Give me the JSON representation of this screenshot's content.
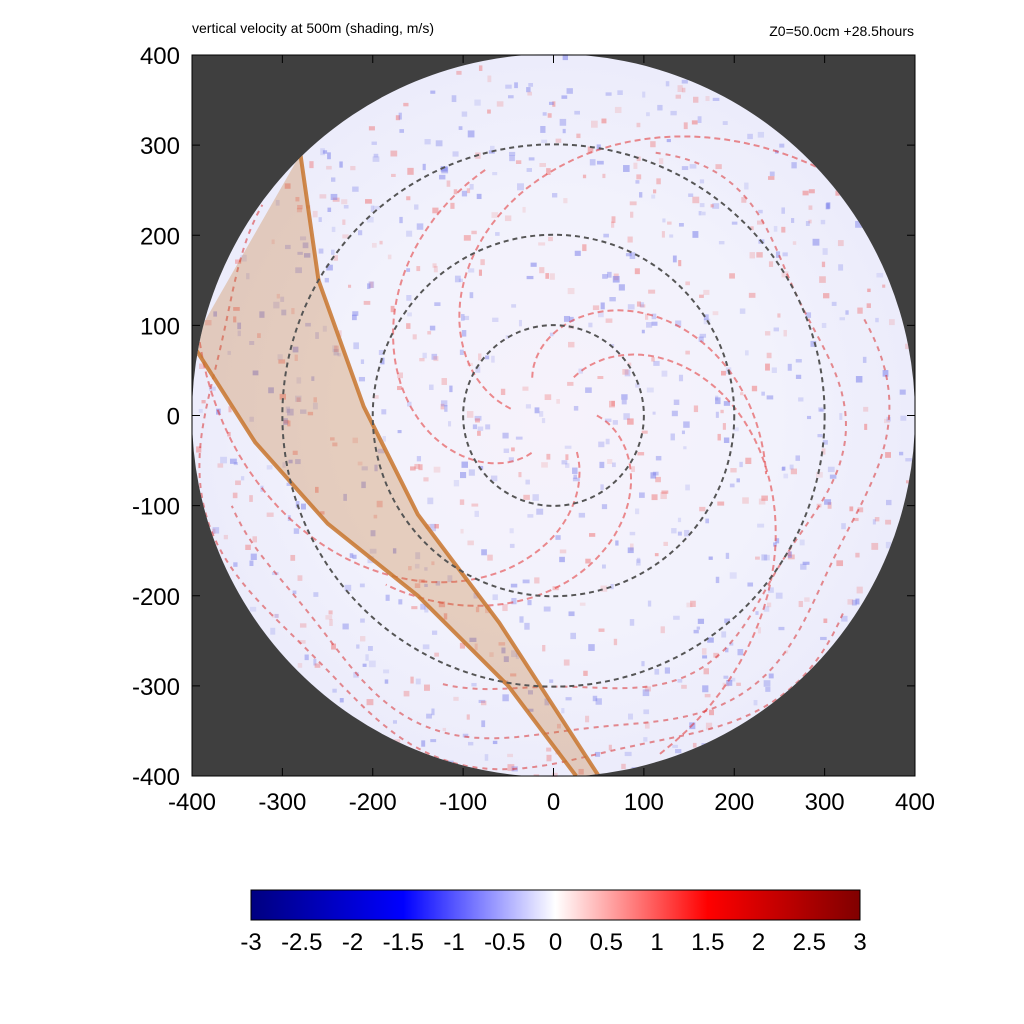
{
  "chart_data": {
    "type": "heatmap",
    "title": "vertical velocity at 500m (shading, m/s)",
    "subtitle": "Z0=50.0cm  +28.5hours",
    "xlim": [
      -400,
      400
    ],
    "ylim": [
      -400,
      400
    ],
    "x_ticks": [
      -400,
      -300,
      -200,
      -100,
      0,
      100,
      200,
      300,
      400
    ],
    "y_ticks": [
      -400,
      -300,
      -200,
      -100,
      0,
      100,
      200,
      300,
      400
    ],
    "x_tick_labels": [
      "-400",
      "-300",
      "-200",
      "-100",
      "0",
      "100",
      "200",
      "300",
      "400"
    ],
    "y_tick_labels": [
      "-400",
      "-300",
      "-200",
      "-100",
      "0",
      "100",
      "200",
      "300",
      "400"
    ],
    "domain_radius": 400,
    "reference_circles_radius": [
      100,
      200,
      300
    ],
    "shaded_band": {
      "upper_edge": [
        [
          -280,
          290
        ],
        [
          -260,
          150
        ],
        [
          -210,
          10
        ],
        [
          -150,
          -110
        ],
        [
          -60,
          -230
        ],
        [
          50,
          -400
        ]
      ],
      "lower_edge": [
        [
          -400,
          80
        ],
        [
          -330,
          -30
        ],
        [
          -250,
          -120
        ],
        [
          -150,
          -200
        ],
        [
          -50,
          -300
        ],
        [
          25,
          -400
        ]
      ]
    },
    "colorbar": {
      "range": [
        -3,
        3
      ],
      "ticks": [
        -3,
        -2.5,
        -2,
        -1.5,
        -1,
        -0.5,
        0,
        0.5,
        1,
        1.5,
        2,
        2.5,
        3
      ],
      "tick_labels": [
        "-3",
        "-2.5",
        "-2",
        "-1.5",
        "-1",
        "-0.5",
        "0",
        "0.5",
        "1",
        "1.5",
        "2",
        "2.5",
        "3"
      ],
      "colors": [
        "#000080",
        "#0000ff",
        "#ffffff",
        "#ff0000",
        "#800000"
      ]
    },
    "background_color": "#3f3f3f",
    "band_color": "#c8762e",
    "grid": false
  }
}
